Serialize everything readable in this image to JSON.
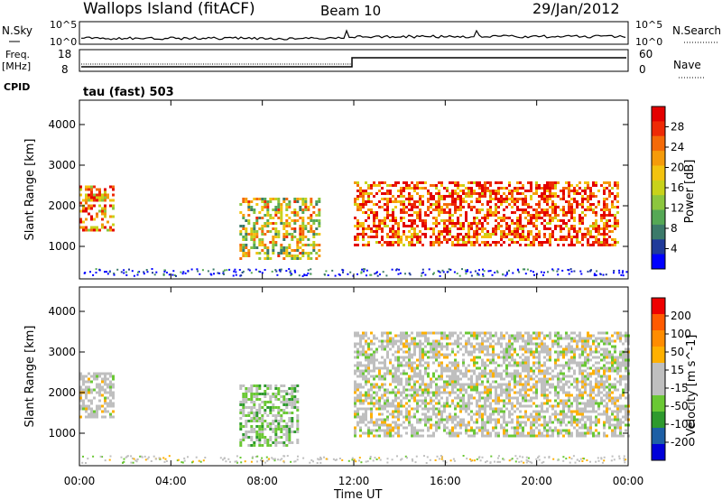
{
  "header": {
    "site": "Wallops Island (fitACF)",
    "beam": "Beam 10",
    "date": "29/Jan/2012"
  },
  "noise_panel": {
    "left_label": "N.Sky",
    "right_label": "N.Search",
    "left_ticks": [
      "10^5",
      "10^0"
    ],
    "right_ticks": [
      "10^5",
      "10^0"
    ]
  },
  "freq_panel": {
    "left_label_1": "Freq.",
    "left_label_2": "[MHz]",
    "right_label": "Nave",
    "left_ticks": [
      "18",
      "8"
    ],
    "right_ticks": [
      "60",
      "0"
    ],
    "cpid_label": "CPID",
    "mode_text": "tau (fast) 503"
  },
  "colors": {
    "power": [
      "#0000ff",
      "#1f3a9a",
      "#3c7a6a",
      "#55a855",
      "#8cc63e",
      "#c8d21a",
      "#f3c30f",
      "#f59b0a",
      "#f46a08",
      "#ee2a06",
      "#e30000"
    ],
    "velocity": [
      "#ee0000",
      "#ff5a00",
      "#ff8c00",
      "#ffb000",
      "#bfbfbf",
      "#bfbfbf",
      "#6ac834",
      "#2e9a2e",
      "#1d5fa5",
      "#0000d8"
    ]
  },
  "chart_data": [
    {
      "type": "heatmap",
      "panel": "power",
      "ylabel": "Slant Range [km]",
      "yticks": [
        "1000",
        "2000",
        "3000",
        "4000"
      ],
      "ylim": [
        200,
        4600
      ],
      "xlim_hours": [
        0,
        24
      ],
      "colorbar_label": "Power [dB]",
      "colorbar_ticks": [
        "4",
        "8",
        "12",
        "16",
        "20",
        "24",
        "28"
      ],
      "colorbar_range": [
        0,
        30
      ],
      "regions": [
        {
          "t": [
            0.0,
            1.5
          ],
          "range_km": [
            1400,
            2500
          ],
          "value": 22
        },
        {
          "t": [
            7.0,
            10.5
          ],
          "range_km": [
            700,
            2200
          ],
          "value": 16
        },
        {
          "t": [
            12.0,
            23.5
          ],
          "range_km": [
            1000,
            2600
          ],
          "value": 26
        }
      ]
    },
    {
      "type": "heatmap",
      "panel": "velocity",
      "ylabel": "Slant Range [km]",
      "yticks": [
        "1000",
        "2000",
        "3000",
        "4000"
      ],
      "ylim": [
        200,
        4600
      ],
      "xlim_hours": [
        0,
        24
      ],
      "colorbar_label": "Velocity [m s^-1]",
      "colorbar_ticks": [
        "200",
        "100",
        "50",
        "15",
        "-15",
        "-50",
        "-100",
        "-200"
      ],
      "colorbar_range": [
        -250,
        250
      ],
      "regions": [
        {
          "t": [
            0.0,
            1.5
          ],
          "range_km": [
            1400,
            2500
          ],
          "value": 0
        },
        {
          "t": [
            7.0,
            9.5
          ],
          "range_km": [
            700,
            2200
          ],
          "value": -60
        },
        {
          "t": [
            12.0,
            24.0
          ],
          "range_km": [
            900,
            3500
          ],
          "value": 0
        }
      ]
    }
  ],
  "time_axis": {
    "ticks": [
      "00:00",
      "04:00",
      "08:00",
      "12:00",
      "16:00",
      "20:00",
      "00:00"
    ],
    "label": "Time UT"
  }
}
